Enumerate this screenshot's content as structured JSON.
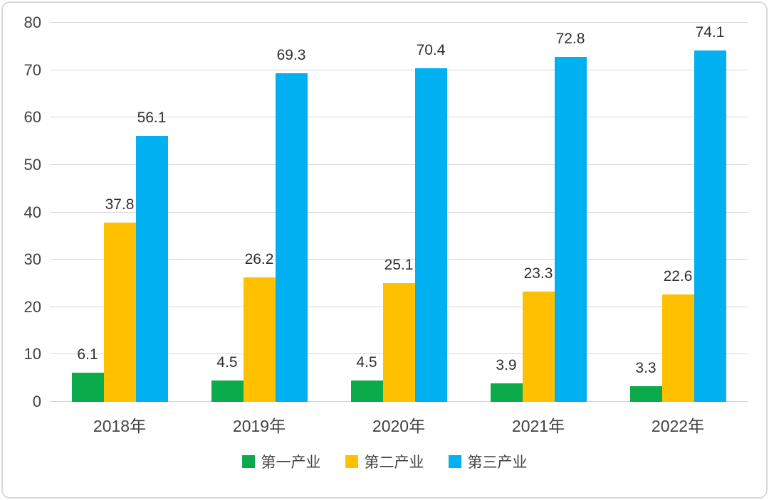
{
  "chart_data": {
    "type": "bar",
    "title": "",
    "xlabel": "",
    "ylabel": "",
    "categories": [
      "2018年",
      "2019年",
      "2020年",
      "2021年",
      "2022年"
    ],
    "series": [
      {
        "name": "第一产业",
        "color": "#0BAB4C",
        "values": [
          6.1,
          4.5,
          4.5,
          3.9,
          3.3
        ]
      },
      {
        "name": "第二产业",
        "color": "#FFC000",
        "values": [
          37.8,
          26.2,
          25.1,
          23.3,
          22.6
        ]
      },
      {
        "name": "第三产业",
        "color": "#00B0F0",
        "values": [
          56.1,
          69.3,
          70.4,
          72.8,
          74.1
        ]
      }
    ],
    "ylim": [
      0,
      80
    ],
    "y_ticks": [
      0,
      10,
      20,
      30,
      40,
      50,
      60,
      70,
      80
    ],
    "grid": "on",
    "grid_color": "#d6d6d6",
    "frame_color": "#d9d9d9",
    "legend_position": "bottom",
    "data_labels": "shown",
    "data_label_format": "one-decimal"
  }
}
